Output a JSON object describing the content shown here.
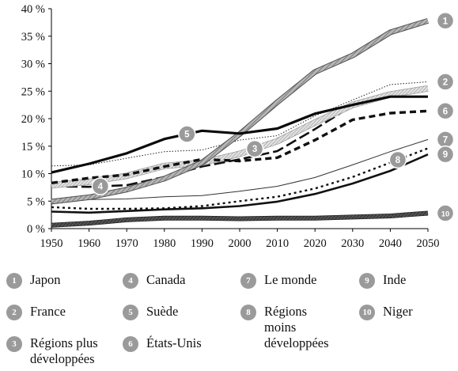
{
  "chart_data": {
    "type": "line",
    "x": [
      1950,
      1960,
      1970,
      1980,
      1990,
      2000,
      2010,
      2020,
      2030,
      2040,
      2050
    ],
    "xlim": [
      1950,
      2050
    ],
    "ylim": [
      0,
      40
    ],
    "y_unit": "%",
    "yticks": [
      0,
      5,
      10,
      15,
      20,
      25,
      30,
      35,
      40
    ],
    "ytick_labels": [
      "0 %",
      "5 %",
      "10 %",
      "15 %",
      "20 %",
      "25 %",
      "30 %",
      "35 %",
      "40 %"
    ],
    "xticks": [
      1950,
      1960,
      1970,
      1980,
      1990,
      2000,
      2010,
      2020,
      2030,
      2040,
      2050
    ],
    "xtick_labels": [
      "1950",
      "1960",
      "1970",
      "1980",
      "1990",
      "2000",
      "2010",
      "2020",
      "2030",
      "2040",
      "2050"
    ],
    "grid": false,
    "legend_position": "bottom",
    "series": [
      {
        "id": 1,
        "name": "Japon",
        "style": "hatched-thick",
        "values": [
          4.9,
          5.7,
          7.1,
          9.1,
          12.0,
          17.2,
          23.0,
          28.5,
          31.5,
          35.7,
          37.8
        ]
      },
      {
        "id": 2,
        "name": "France",
        "style": "dotted-thin",
        "values": [
          11.4,
          11.6,
          12.8,
          14.0,
          14.3,
          16.1,
          16.9,
          20.5,
          23.4,
          26.2,
          26.7
        ]
      },
      {
        "id": 3,
        "name": "Régions plus\ndéveloppées",
        "style": "hatched-light",
        "values": [
          7.9,
          8.5,
          9.6,
          11.4,
          12.0,
          13.6,
          15.9,
          19.3,
          22.5,
          24.4,
          25.5
        ]
      },
      {
        "id": 4,
        "name": "Canada",
        "style": "dashed-long",
        "values": [
          7.7,
          7.6,
          7.9,
          9.4,
          11.3,
          12.6,
          14.1,
          18.1,
          22.4,
          24.5,
          25.4
        ]
      },
      {
        "id": 5,
        "name": "Suède",
        "style": "solid-thick",
        "values": [
          10.2,
          11.8,
          13.7,
          16.3,
          17.8,
          17.3,
          18.2,
          20.9,
          22.5,
          24.0,
          24.0
        ]
      },
      {
        "id": 6,
        "name": "États-Unis",
        "style": "dashed-medium",
        "values": [
          8.3,
          9.2,
          9.8,
          11.3,
          12.6,
          12.3,
          12.9,
          16.1,
          19.8,
          21.0,
          21.4
        ]
      },
      {
        "id": 7,
        "name": "Le monde",
        "style": "solid-thin",
        "values": [
          5.2,
          5.3,
          5.4,
          5.8,
          6.0,
          6.8,
          7.7,
          9.3,
          11.6,
          14.0,
          16.2
        ]
      },
      {
        "id": 8,
        "name": "Régions\nmoins\ndéveloppées",
        "style": "dotted-thick",
        "values": [
          3.9,
          3.6,
          3.6,
          3.7,
          4.1,
          5.0,
          5.8,
          7.3,
          9.4,
          12.0,
          14.6
        ]
      },
      {
        "id": 9,
        "name": "Inde",
        "style": "solid-medium",
        "values": [
          3.1,
          2.9,
          3.2,
          3.5,
          3.7,
          4.1,
          4.9,
          6.3,
          8.2,
          10.5,
          13.5
        ]
      },
      {
        "id": 10,
        "name": "Niger",
        "style": "hatched-dark",
        "values": [
          0.6,
          1.0,
          1.6,
          1.9,
          1.9,
          1.8,
          1.9,
          1.9,
          2.1,
          2.3,
          2.8
        ]
      }
    ],
    "annotations": [
      {
        "label": "1",
        "series": 1,
        "position": "right-end"
      },
      {
        "label": "2",
        "series": 2,
        "position": "right-end"
      },
      {
        "label": "3",
        "series": 3,
        "at_year": 2004
      },
      {
        "label": "4",
        "series": 4,
        "at_year": 1963
      },
      {
        "label": "5",
        "series": 5,
        "at_year": 1986
      },
      {
        "label": "6",
        "series": 6,
        "position": "right-end"
      },
      {
        "label": "7",
        "series": 7,
        "position": "right-end"
      },
      {
        "label": "8",
        "series": 8,
        "at_year": 2042
      },
      {
        "label": "9",
        "series": 9,
        "position": "right-end"
      },
      {
        "label": "10",
        "series": 10,
        "position": "right-end"
      }
    ]
  },
  "colors": {
    "badge": "#9a9a9a",
    "series_dark": "#111111",
    "series_gray": "#8a8a8a",
    "series_light": "#c8c8c8"
  }
}
